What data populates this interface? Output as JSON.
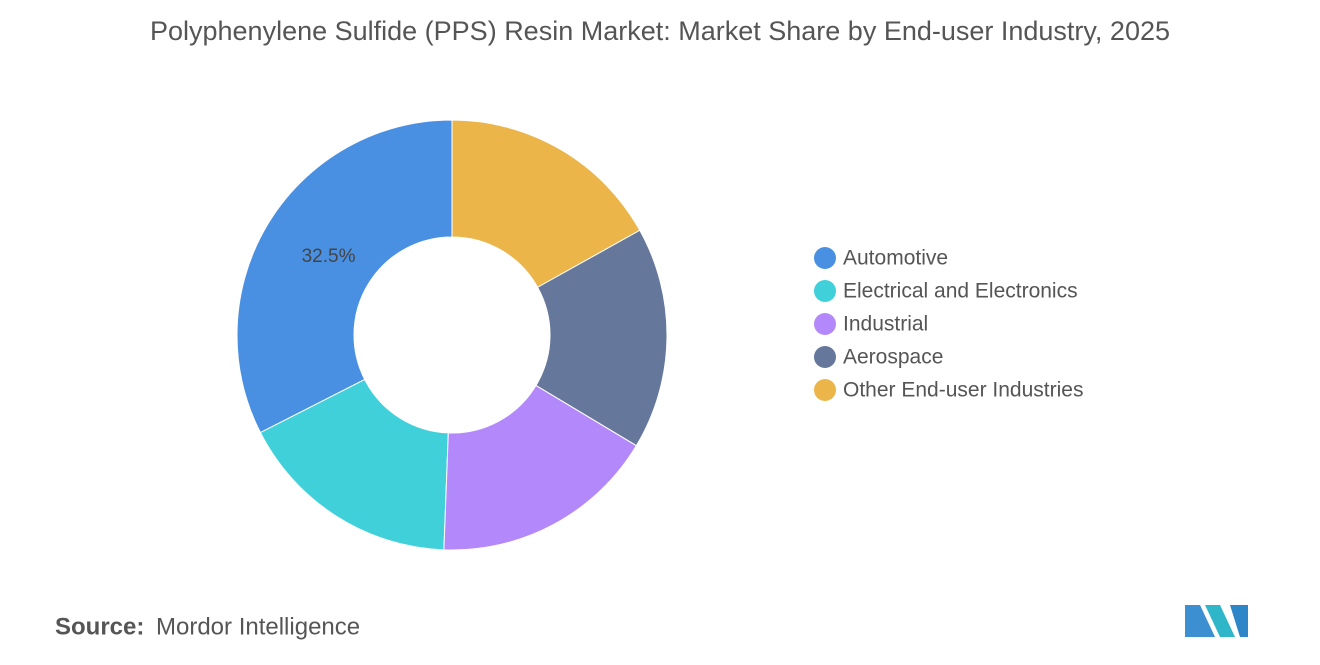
{
  "chart_data": {
    "type": "donut",
    "title": "Polyphenylene Sulfide (PPS) Resin Market: Market Share by End-user Industry, 2025",
    "categories": [
      "Automotive",
      "Electrical and Electronics",
      "Industrial",
      "Aerospace",
      "Other End-user Industries"
    ],
    "values": [
      32.5,
      16.9,
      17.0,
      16.7,
      16.9
    ],
    "value_labels": [
      "32.5%",
      null,
      null,
      null,
      null
    ],
    "colors": [
      "#4a90e2",
      "#40d0da",
      "#b388fa",
      "#65779a",
      "#ebb54a"
    ],
    "legend": "right",
    "source_label": "Source:",
    "source": "Mordor Intelligence"
  }
}
